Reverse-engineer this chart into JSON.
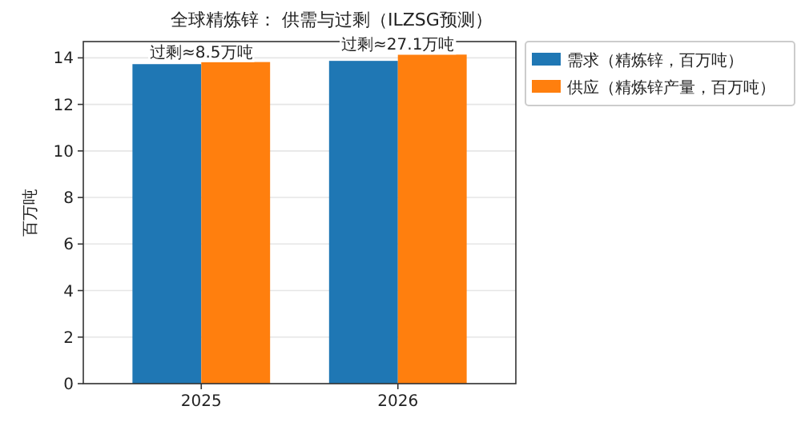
{
  "chart_data": {
    "type": "bar",
    "title": "全球精炼锌：  供需与过剩（ILZSG预测）",
    "ylabel": "百万吨",
    "categories": [
      "2025",
      "2026"
    ],
    "series": [
      {
        "name": "需求（精炼锌，百万吨）",
        "color": "#1f77b4",
        "values": [
          13.73,
          13.87
        ]
      },
      {
        "name": "供应（精炼锌产量，百万吨）",
        "color": "#ff7f0e",
        "values": [
          13.82,
          14.14
        ]
      }
    ],
    "annotations": [
      {
        "text": "过剩≈8.5万吨",
        "x": "2025",
        "y": 13.82
      },
      {
        "text": "过剩≈27.1万吨",
        "x": "2026",
        "y": 14.14
      }
    ],
    "ylim": [
      0,
      14.7
    ],
    "yticks": [
      0,
      2,
      4,
      6,
      8,
      10,
      12,
      14
    ],
    "grid": "y",
    "legend": "right"
  }
}
